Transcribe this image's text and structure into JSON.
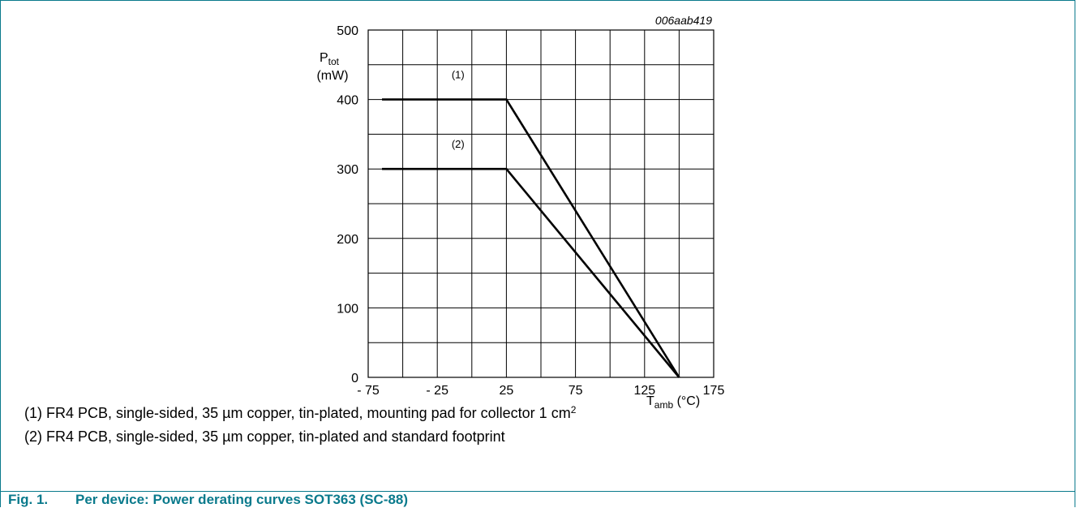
{
  "figure": {
    "code": "006aab419",
    "notes": [
      {
        "text": "(1) FR4 PCB, single-sided, 35 µm copper, tin-plated, mounting pad for collector 1 cm",
        "sup": "2"
      },
      {
        "text": "(2) FR4 PCB, single-sided, 35 µm copper, tin-plated and standard footprint",
        "sup": ""
      }
    ],
    "caption_num": "Fig. 1.",
    "caption_text": "Per device: Power derating curves SOT363 (SC-88)"
  },
  "colors": {
    "accent": "#0a7a8c",
    "line": "#000000",
    "grid": "#000000"
  },
  "chart_data": {
    "type": "line",
    "title": "",
    "xlabel": "T",
    "xlabel_sub": "amb",
    "xlabel_unit": " (°C)",
    "ylabel": "P",
    "ylabel_sub": "tot",
    "ylabel_unit": "(mW)",
    "xlim": [
      -75,
      175
    ],
    "ylim": [
      0,
      500
    ],
    "x_ticks": [
      -75,
      -25,
      25,
      75,
      125,
      175
    ],
    "x_tick_labels": [
      "- 75",
      "- 25",
      "25",
      "75",
      "125",
      "175"
    ],
    "y_ticks": [
      0,
      100,
      200,
      300,
      400,
      500
    ],
    "y_tick_labels": [
      "0",
      "100",
      "200",
      "300",
      "400",
      "500"
    ],
    "grid": true,
    "grid_step_x": 25,
    "grid_step_y": 50,
    "series": [
      {
        "label": "(1)",
        "x": [
          -65,
          25,
          150
        ],
        "y": [
          400,
          400,
          0
        ],
        "label_at": [
          -10,
          435
        ]
      },
      {
        "label": "(2)",
        "x": [
          -65,
          25,
          150
        ],
        "y": [
          300,
          300,
          0
        ],
        "label_at": [
          -10,
          335
        ]
      }
    ]
  }
}
